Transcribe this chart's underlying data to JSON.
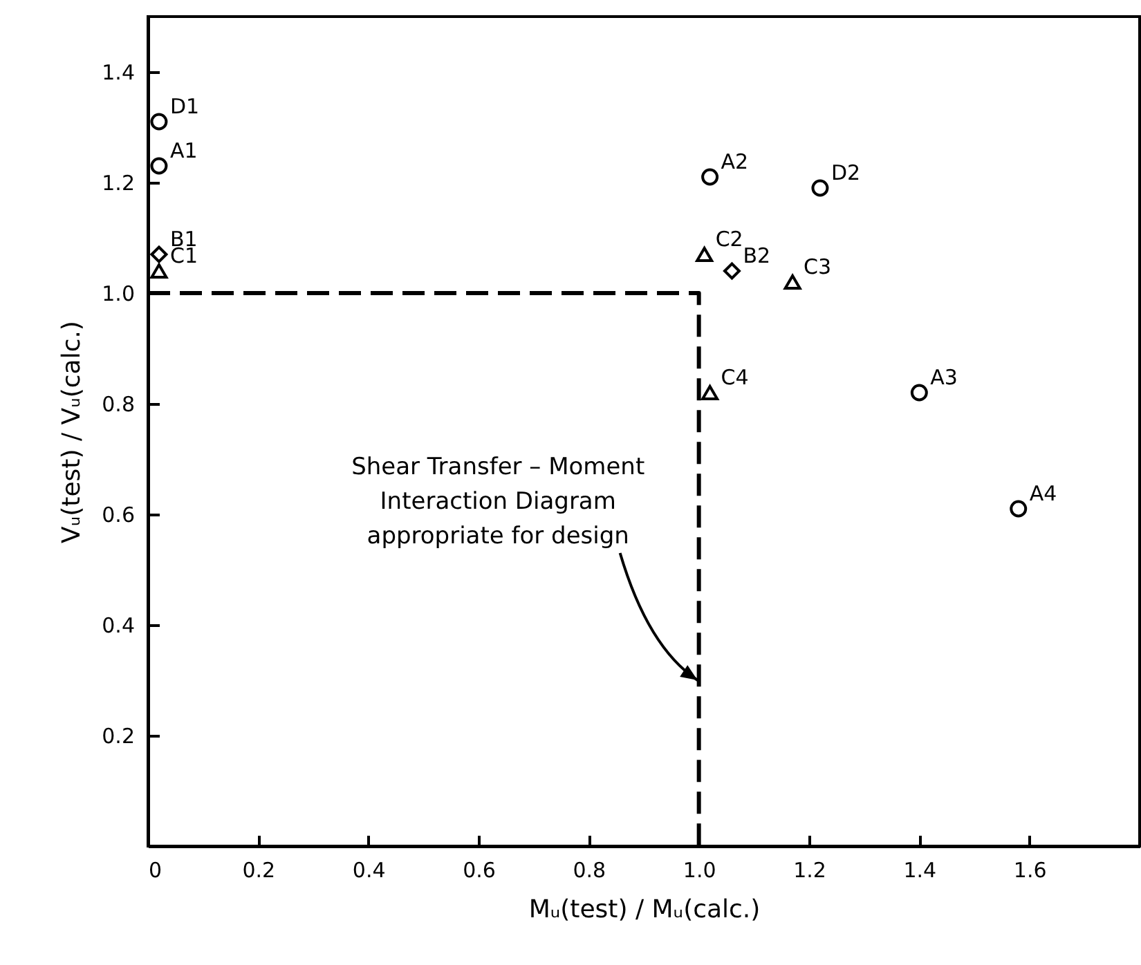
{
  "chart_data": {
    "type": "scatter",
    "xlabel": "Mᵤ(test) / Mᵤ(calc.)",
    "ylabel": "Vᵤ(test) / Vᵤ(calc.)",
    "xlim": [
      0,
      1.8
    ],
    "ylim": [
      0,
      1.5
    ],
    "xticks": [
      {
        "value": 0,
        "label": "0"
      },
      0.2,
      0.4,
      0.6,
      0.8,
      {
        "value": 1,
        "label": "1.0"
      },
      1.2,
      1.4,
      1.6
    ],
    "yticks": [
      0.2,
      0.4,
      0.6,
      0.8,
      {
        "value": 1,
        "label": "1.0"
      },
      1.2,
      1.4
    ],
    "grid": false,
    "series": [
      {
        "type": "line",
        "color": "#000000",
        "line_style": "dashed",
        "marker": "none",
        "x": [
          0,
          1.0,
          1.0
        ],
        "values": [
          1.0,
          1.0,
          0
        ]
      },
      {
        "color": "#000000",
        "marker": "circle",
        "x": [
          0.02,
          1.02,
          1.4,
          1.58
        ],
        "values": [
          1.23,
          1.21,
          0.82,
          0.61
        ]
      },
      {
        "color": "#000000",
        "marker": "diamond",
        "x": [
          0.02,
          1.06
        ],
        "values": [
          1.07,
          1.04
        ]
      },
      {
        "color": "#000000",
        "marker": "triangle",
        "x": [
          0.02,
          1.01,
          1.17,
          1.02
        ],
        "values": [
          1.04,
          1.07,
          1.02,
          0.82
        ]
      },
      {
        "color": "#000000",
        "marker": "circle",
        "x": [
          0.02,
          1.22
        ],
        "values": [
          1.31,
          1.19
        ]
      }
    ],
    "annotations": [
      {
        "text": "D1",
        "x": 0.02,
        "y": 1.31
      },
      {
        "text": "A1",
        "x": 0.02,
        "y": 1.23
      },
      {
        "text": "B1",
        "x": 0.02,
        "y": 1.07
      },
      {
        "text": "C1",
        "x": 0.02,
        "y": 1.04
      },
      {
        "text": "A2",
        "x": 1.02,
        "y": 1.21
      },
      {
        "text": "D2",
        "x": 1.22,
        "y": 1.19
      },
      {
        "text": "C2",
        "x": 1.01,
        "y": 1.07
      },
      {
        "text": "B2",
        "x": 1.06,
        "y": 1.04
      },
      {
        "text": "C3",
        "x": 1.17,
        "y": 1.02
      },
      {
        "text": "C4",
        "x": 1.02,
        "y": 0.82
      },
      {
        "text": "A3",
        "x": 1.4,
        "y": 0.82
      },
      {
        "text": "A4",
        "x": 1.58,
        "y": 0.61
      },
      {
        "text": "Shear Transfer – Moment\nInteraction Diagram\nappropriate for design",
        "x": 1.0,
        "y": 0.3
      }
    ]
  }
}
